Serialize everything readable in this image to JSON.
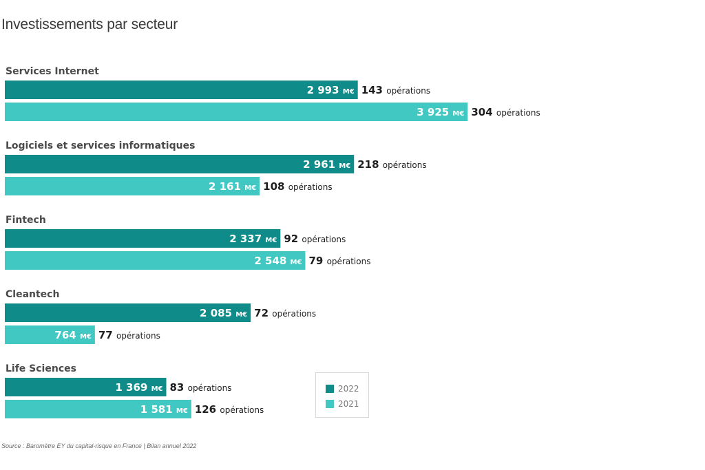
{
  "title": "Investissements par secteur",
  "source": "Source : Baromètre EY du capital-risque en France | Bilan annuel 2022",
  "colors": {
    "2022": "#0f8c8a",
    "2021": "#42c8c2"
  },
  "chart_data": {
    "type": "bar",
    "orientation": "horizontal",
    "title": "Investissements par secteur",
    "unit": "M€",
    "ops_suffix": "opérations",
    "legend": [
      "2022",
      "2021"
    ],
    "legend_position": "bottom-center",
    "categories": [
      "Services Internet",
      "Logiciels et services informatiques",
      "Fintech",
      "Cleantech",
      "Life Sciences"
    ],
    "series": [
      {
        "name": "2022",
        "values": [
          2993,
          2961,
          2337,
          2085,
          1369
        ],
        "value_labels": [
          "2 993",
          "2 961",
          "2 337",
          "2 085",
          "1 369"
        ],
        "operations": [
          143,
          218,
          92,
          72,
          83
        ]
      },
      {
        "name": "2021",
        "values": [
          3925,
          2161,
          2548,
          764,
          1581
        ],
        "value_labels": [
          "3 925",
          "2 161",
          "2 548",
          "764",
          "1 581"
        ],
        "operations": [
          304,
          108,
          79,
          77,
          126
        ]
      }
    ]
  }
}
